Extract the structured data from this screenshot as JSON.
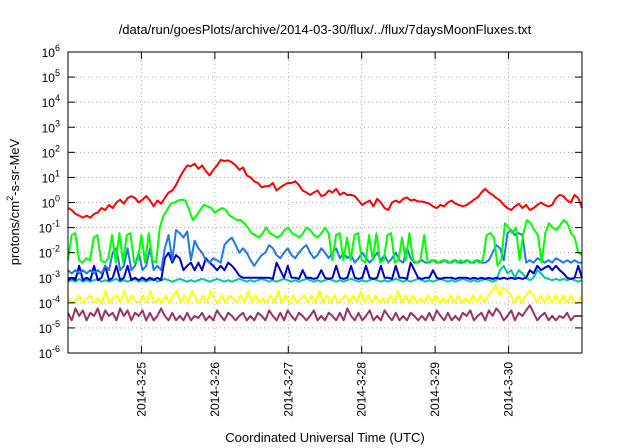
{
  "chart_data": {
    "type": "line",
    "title": "/data/run/goesPlots/archive/2014-03-30/flux/../flux/7daysMoonFluxes.txt",
    "xlabel": "Coordinated Universal Time (UTC)",
    "ylabel": {
      "base": "protons/cm",
      "sup": "2",
      "rest": "-s-sr-MeV"
    },
    "x_range": [
      "2014-03-24T00:00",
      "2014-03-31T00:00"
    ],
    "x_ticks": [
      "2014-3-25",
      "2014-3-26",
      "2014-3-27",
      "2014-3-28",
      "2014-3-29",
      "2014-3-30"
    ],
    "y_scale": "log",
    "ylim": [
      1e-06,
      1000000.0
    ],
    "y_ticks": [
      {
        "base": "10",
        "exp": "-6"
      },
      {
        "base": "10",
        "exp": "-5"
      },
      {
        "base": "10",
        "exp": "-4"
      },
      {
        "base": "10",
        "exp": "-3"
      },
      {
        "base": "10",
        "exp": "-2"
      },
      {
        "base": "10",
        "exp": "-1"
      },
      {
        "base": "10",
        "exp": "0"
      },
      {
        "base": "10",
        "exp": "1"
      },
      {
        "base": "10",
        "exp": "2"
      },
      {
        "base": "10",
        "exp": "3"
      },
      {
        "base": "10",
        "exp": "4"
      },
      {
        "base": "10",
        "exp": "5"
      },
      {
        "base": "10",
        "exp": "6"
      }
    ],
    "grid": true,
    "series": [
      {
        "color": "#ff0000",
        "values": [
          0.6,
          0.5,
          0.35,
          0.3,
          0.25,
          0.3,
          0.25,
          0.35,
          0.4,
          0.6,
          0.5,
          0.8,
          0.6,
          1.0,
          1.3,
          0.9,
          1.5,
          1.8,
          1.5,
          1.0,
          1.3,
          1.8,
          1.2,
          0.7,
          1.2,
          0.9,
          1.5,
          2.5,
          3.0,
          5.0,
          10,
          18,
          30,
          28,
          35,
          22,
          30,
          18,
          12,
          20,
          30,
          50,
          45,
          48,
          40,
          30,
          20,
          25,
          12,
          10,
          7,
          6,
          4,
          4.5,
          4.5,
          6,
          3,
          4,
          5,
          6,
          6,
          7,
          5,
          3,
          2.5,
          2,
          2.5,
          3,
          1.8,
          2,
          3,
          2.5,
          3.5,
          2,
          2.5,
          2,
          2,
          1.8,
          1.2,
          0.8,
          1,
          1.2,
          0.7,
          1.4,
          1.0,
          0.6,
          0.5,
          1.0,
          1.2,
          1.0,
          1.4,
          1.6,
          1.2,
          1.3,
          1.1,
          1.1,
          1.0,
          0.9,
          0.7,
          0.6,
          0.8,
          0.7,
          1.0,
          1.2,
          0.9,
          0.8,
          0.7,
          0.8,
          1.0,
          1.3,
          1.6,
          2.5,
          3.5,
          2.5,
          2.0,
          1.5,
          1.2,
          0.8,
          0.6,
          0.5,
          0.7,
          0.9,
          0.6,
          0.8,
          0.5,
          0.6,
          0.8,
          1.0,
          0.8,
          0.7,
          0.8,
          1.5,
          2.0,
          1.8,
          1.2,
          1.0,
          2.0,
          1.5,
          0.6
        ]
      },
      {
        "color": "#00ff00",
        "values": [
          0.005,
          0.05,
          0.06,
          0.005,
          0.004,
          0.006,
          0.005,
          0.04,
          0.05,
          0.005,
          0.004,
          0.006,
          0.05,
          0.004,
          0.06,
          0.004,
          0.05,
          0.06,
          0.004,
          0.005,
          0.05,
          0.004,
          0.06,
          0.005,
          0.004,
          0.1,
          0.3,
          0.5,
          0.9,
          1.0,
          1.2,
          1.3,
          1.2,
          0.5,
          0.2,
          0.3,
          0.5,
          0.8,
          0.7,
          0.6,
          0.4,
          0.5,
          0.6,
          0.5,
          0.3,
          0.25,
          0.2,
          0.2,
          0.15,
          0.1,
          0.06,
          0.05,
          0.04,
          0.06,
          0.1,
          0.06,
          0.05,
          0.04,
          0.05,
          0.08,
          0.1,
          0.06,
          0.05,
          0.04,
          0.06,
          0.1,
          0.08,
          0.05,
          0.04,
          0.06,
          0.1,
          0.06,
          0.005,
          0.05,
          0.06,
          0.005,
          0.04,
          0.005,
          0.05,
          0.06,
          0.005,
          0.004,
          0.05,
          0.005,
          0.06,
          0.004,
          0.005,
          0.05,
          0.06,
          0.004,
          0.005,
          0.04,
          0.005,
          0.06,
          0.005,
          0.004,
          0.005,
          0.05,
          0.004,
          0.005,
          0.005,
          0.004,
          0.005,
          0.005,
          0.004,
          0.005,
          0.004,
          0.005,
          0.004,
          0.005,
          0.004,
          0.005,
          0.004,
          0.005,
          0.05,
          0.06,
          0.04,
          0.003,
          0.005,
          0.15,
          0.1,
          0.06,
          0.1,
          0.005,
          0.06,
          0.2,
          0.15,
          0.08,
          0.05,
          0.004,
          0.06,
          0.15,
          0.1,
          0.08,
          0.12,
          0.2,
          0.15,
          0.06,
          0.04,
          0.01,
          0.008
        ]
      },
      {
        "color": "#1e78e6",
        "values": [
          0.002,
          0.0015,
          0.002,
          0.0015,
          0.002,
          0.0015,
          0.002,
          0.0015,
          0.002,
          0.0015,
          0.003,
          0.002,
          0.01,
          0.015,
          0.002,
          0.003,
          0.015,
          0.002,
          0.003,
          0.01,
          0.002,
          0.003,
          0.015,
          0.002,
          0.003,
          0.002,
          0.015,
          0.05,
          0.005,
          0.08,
          0.06,
          0.04,
          0.07,
          0.005,
          0.03,
          0.015,
          0.01,
          0.005,
          0.004,
          0.006,
          0.005,
          0.004,
          0.02,
          0.03,
          0.04,
          0.02,
          0.01,
          0.015,
          0.01,
          0.005,
          0.003,
          0.005,
          0.008,
          0.01,
          0.02,
          0.015,
          0.008,
          0.006,
          0.01,
          0.015,
          0.008,
          0.006,
          0.01,
          0.015,
          0.02,
          0.01,
          0.006,
          0.008,
          0.015,
          0.01,
          0.006,
          0.01,
          0.015,
          0.006,
          0.01,
          0.006,
          0.008,
          0.004,
          0.006,
          0.01,
          0.006,
          0.004,
          0.006,
          0.01,
          0.005,
          0.008,
          0.004,
          0.006,
          0.01,
          0.005,
          0.004,
          0.015,
          0.006,
          0.004,
          0.004,
          0.005,
          0.004,
          0.004,
          0.005,
          0.004,
          0.004,
          0.005,
          0.004,
          0.004,
          0.005,
          0.004,
          0.004,
          0.005,
          0.004,
          0.004,
          0.005,
          0.004,
          0.004,
          0.005,
          0.01,
          0.02,
          0.015,
          0.005,
          0.06,
          0.08,
          0.05,
          0.06,
          0.05,
          0.004,
          0.005,
          0.004,
          0.006,
          0.005,
          0.004,
          0.005,
          0.004,
          0.006,
          0.005,
          0.004,
          0.005,
          0.004,
          0.005,
          0.004,
          0.004
        ]
      },
      {
        "color": "#0000cc",
        "values": [
          0.0008,
          0.001,
          0.0008,
          0.003,
          0.0008,
          0.001,
          0.0008,
          0.003,
          0.0008,
          0.001,
          0.003,
          0.0008,
          0.001,
          0.003,
          0.0008,
          0.001,
          0.003,
          0.0008,
          0.001,
          0.0008,
          0.001,
          0.0008,
          0.001,
          0.0008,
          0.001,
          0.0008,
          0.006,
          0.01,
          0.004,
          0.008,
          0.006,
          0.002,
          0.003,
          0.004,
          0.002,
          0.004,
          0.002,
          0.006,
          0.004,
          0.003,
          0.002,
          0.003,
          0.002,
          0.004,
          0.003,
          0.002,
          0.0012,
          0.001,
          0.001,
          0.001,
          0.001,
          0.001,
          0.001,
          0.001,
          0.001,
          0.0009,
          0.004,
          0.002,
          0.001,
          0.003,
          0.001,
          0.001,
          0.0009,
          0.002,
          0.001,
          0.001,
          0.0009,
          0.001,
          0.002,
          0.001,
          0.0009,
          0.001,
          0.003,
          0.001,
          0.0009,
          0.001,
          0.003,
          0.001,
          0.0009,
          0.001,
          0.003,
          0.001,
          0.0009,
          0.001,
          0.003,
          0.001,
          0.001,
          0.0009,
          0.003,
          0.001,
          0.001,
          0.0009,
          0.004,
          0.002,
          0.001,
          0.0009,
          0.001,
          0.001,
          0.002,
          0.001,
          0.0009,
          0.001,
          0.001,
          0.001,
          0.0009,
          0.001,
          0.001,
          0.001,
          0.0009,
          0.001,
          0.0009,
          0.001,
          0.0009,
          0.001,
          0.0009,
          0.001,
          0.0009,
          0.001,
          0.0009,
          0.001,
          0.0009,
          0.001,
          0.0009,
          0.001,
          0.002,
          0.0015,
          0.003,
          0.002,
          0.0025,
          0.003,
          0.002,
          0.003,
          0.002,
          0.0015,
          0.001,
          0.0009,
          0.001,
          0.003,
          0.001
        ]
      },
      {
        "color": "#00c8a0",
        "values": [
          0.0007,
          0.0008,
          0.0007,
          0.0009,
          0.0007,
          0.0008,
          0.0007,
          0.0008,
          0.0009,
          0.0007,
          0.0008,
          0.0007,
          0.0008,
          0.0009,
          0.0007,
          0.0008,
          0.0007,
          0.0008,
          0.0009,
          0.0007,
          0.0008,
          0.0007,
          0.0008,
          0.0009,
          0.0007,
          0.0008,
          0.0009,
          0.0008,
          0.0007,
          0.0008,
          0.0009,
          0.0008,
          0.0007,
          0.0008,
          0.0007,
          0.0008,
          0.0009,
          0.0008,
          0.0007,
          0.0008,
          0.0009,
          0.0008,
          0.0007,
          0.0008,
          0.0007,
          0.0008,
          0.0009,
          0.0008,
          0.0007,
          0.0008,
          0.0007,
          0.0008,
          0.0009,
          0.0008,
          0.0007,
          0.0008,
          0.0007,
          0.0008,
          0.0009,
          0.0008,
          0.0007,
          0.0008,
          0.0007,
          0.0008,
          0.0009,
          0.0008,
          0.0007,
          0.0008,
          0.0007,
          0.0008,
          0.0009,
          0.0008,
          0.0007,
          0.0008,
          0.0007,
          0.0008,
          0.0009,
          0.0008,
          0.0007,
          0.0008,
          0.0007,
          0.0008,
          0.0009,
          0.0008,
          0.0007,
          0.0008,
          0.0007,
          0.0008,
          0.0009,
          0.0008,
          0.0007,
          0.0008,
          0.0007,
          0.0008,
          0.0009,
          0.0008,
          0.0007,
          0.0008,
          0.0007,
          0.0008,
          0.0009,
          0.0008,
          0.0007,
          0.0008,
          0.0007,
          0.0008,
          0.0009,
          0.0008,
          0.0007,
          0.0008,
          0.0007,
          0.0008,
          0.0009,
          0.0008,
          0.0007,
          0.0008,
          0.002,
          0.003,
          0.0015,
          0.002,
          0.001,
          0.002,
          0.0015,
          0.001,
          0.0008,
          0.001,
          0.002,
          0.0015,
          0.001,
          0.0009,
          0.0008,
          0.0009,
          0.0008,
          0.0009,
          0.0008,
          0.0009,
          0.0008,
          0.0007,
          0.0008
        ]
      },
      {
        "color": "#ffff00",
        "values": [
          0.00015,
          0.0001,
          0.00012,
          0.0002,
          0.0001,
          0.00015,
          0.0002,
          0.0001,
          0.00015,
          0.0001,
          0.0003,
          0.0001,
          0.00015,
          0.0002,
          0.0001,
          0.0003,
          0.0001,
          0.0002,
          0.00012,
          0.0001,
          0.0002,
          0.0001,
          0.0003,
          0.0001,
          0.00015,
          0.0001,
          0.0002,
          0.0001,
          0.0002,
          0.0003,
          0.0001,
          0.0002,
          0.0001,
          0.0003,
          0.00015,
          0.0001,
          0.0002,
          0.0001,
          0.0003,
          0.00015,
          0.0001,
          0.0002,
          0.0001,
          0.0002,
          0.00015,
          0.0001,
          0.0002,
          0.0001,
          0.0003,
          0.0001,
          0.0002,
          0.0001,
          0.00015,
          0.0001,
          0.0002,
          0.0001,
          0.0003,
          0.0001,
          0.0002,
          0.0001,
          0.0002,
          0.0001,
          0.00015,
          0.0002,
          0.0001,
          0.0002,
          0.0001,
          0.0003,
          0.0001,
          0.0002,
          0.0001,
          0.0002,
          0.0001,
          0.00015,
          0.0002,
          0.0001,
          0.0002,
          0.0001,
          0.0003,
          0.0001,
          0.0002,
          0.0001,
          0.0002,
          0.0001,
          0.00015,
          0.0001,
          0.0002,
          0.0001,
          0.0003,
          0.0001,
          0.0002,
          0.0001,
          0.0002,
          0.0001,
          0.00015,
          0.0001,
          0.0002,
          0.0001,
          0.0002,
          0.0001,
          0.00015,
          0.0001,
          0.0002,
          0.0001,
          0.0002,
          0.0001,
          0.00015,
          0.0001,
          0.0002,
          0.0001,
          0.0002,
          0.0001,
          0.0002,
          0.0003,
          0.0005,
          0.0002,
          0.0004,
          0.0003,
          0.0002,
          0.0001,
          0.0002,
          0.0001,
          0.0002,
          0.0003,
          0.0002,
          0.0001,
          0.0002,
          0.0001,
          0.0002,
          0.0001,
          0.0002,
          0.0001,
          0.0002,
          0.0001,
          0.0002,
          0.0001,
          0.0001,
          0.0002
        ]
      },
      {
        "color": "#993366",
        "values": [
          4e-05,
          2e-05,
          6e-05,
          3e-05,
          5e-05,
          2e-05,
          4e-05,
          3e-05,
          6e-05,
          2e-05,
          5e-05,
          3e-05,
          4e-05,
          2e-05,
          6e-05,
          3e-05,
          5e-05,
          2e-05,
          4e-05,
          3e-05,
          5e-05,
          2e-05,
          4e-05,
          2e-05,
          3e-05,
          6e-05,
          3e-05,
          2e-05,
          4e-05,
          2e-05,
          3e-05,
          2e-05,
          4e-05,
          2e-05,
          3e-05,
          2.5e-05,
          4e-05,
          2e-05,
          3e-05,
          2e-05,
          5e-05,
          3e-05,
          2e-05,
          4e-05,
          3e-05,
          2e-05,
          3e-05,
          4e-05,
          2e-05,
          3e-05,
          2e-05,
          4e-05,
          3e-05,
          2e-05,
          5e-05,
          3e-05,
          2e-05,
          4e-05,
          2e-05,
          5e-05,
          3e-05,
          2e-05,
          4e-05,
          3e-05,
          2e-05,
          3e-05,
          5e-05,
          2e-05,
          3e-05,
          2e-05,
          4e-05,
          3e-05,
          2e-05,
          4e-05,
          2e-05,
          6e-05,
          3e-05,
          2e-05,
          4e-05,
          2e-05,
          3e-05,
          5e-05,
          2e-05,
          3e-05,
          2e-05,
          5e-05,
          3e-05,
          2e-05,
          4e-05,
          2e-05,
          3e-05,
          2e-05,
          4e-05,
          3e-05,
          2e-05,
          3e-05,
          2e-05,
          4e-05,
          2e-05,
          5e-05,
          3e-05,
          2e-05,
          4e-05,
          2e-05,
          3e-05,
          2e-05,
          4e-05,
          3e-05,
          5e-05,
          2e-05,
          3e-05,
          4e-05,
          2e-05,
          5e-05,
          3e-05,
          6e-05,
          4e-05,
          2e-05,
          3e-05,
          5e-05,
          2e-05,
          4e-05,
          3e-05,
          5e-05,
          8e-05,
          4e-05,
          2e-05,
          3e-05,
          4e-05,
          2e-05,
          3e-05,
          2e-05,
          3e-05,
          2.5e-05,
          4e-05,
          2e-05,
          3e-05,
          3e-05,
          3e-05
        ]
      }
    ]
  }
}
